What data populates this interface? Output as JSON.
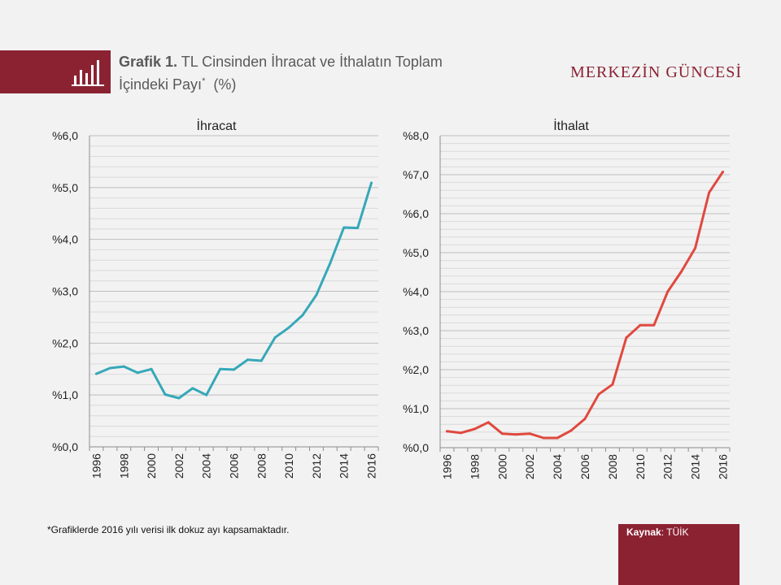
{
  "header": {
    "title_bold": "Grafik 1.",
    "title_line1": "TL Cinsinden İhracat ve İthalatın Toplam",
    "title_line2": "İçindeki Payı",
    "title_sup": "*",
    "title_unit": "(%)",
    "brand": "MERKEZİN GÜNCESİ",
    "icon": "bar-chart-icon"
  },
  "footer": {
    "footnote": "*Grafiklerde 2016 yılı verisi ilk dokuz ayı kapsamaktadır.",
    "source_label": "Kaynak",
    "source_value": ": TÜİK"
  },
  "colors": {
    "accent": "#8b2232",
    "export_line": "#36a8b9",
    "import_line": "#e0493f"
  },
  "chart_data": [
    {
      "type": "line",
      "title": "İhracat",
      "x": [
        1996,
        1997,
        1998,
        1999,
        2000,
        2001,
        2002,
        2003,
        2004,
        2005,
        2006,
        2007,
        2008,
        2009,
        2010,
        2011,
        2012,
        2013,
        2014,
        2015,
        2016
      ],
      "values": [
        1.41,
        1.52,
        1.55,
        1.43,
        1.5,
        1.01,
        0.94,
        1.13,
        1.0,
        1.5,
        1.49,
        1.68,
        1.66,
        2.11,
        2.3,
        2.54,
        2.93,
        3.54,
        4.23,
        4.22,
        5.09
      ],
      "ylim": [
        0,
        6
      ],
      "y_ticks": [
        0,
        1,
        2,
        3,
        4,
        5,
        6
      ],
      "y_tick_labels": [
        "%0,0",
        "%1,0",
        "%2,0",
        "%3,0",
        "%4,0",
        "%5,0",
        "%6,0"
      ],
      "x_tick_labels": [
        "1996",
        "1998",
        "2000",
        "2002",
        "2004",
        "2006",
        "2008",
        "2010",
        "2012",
        "2014",
        "2016"
      ],
      "grid": true
    },
    {
      "type": "line",
      "title": "İthalat",
      "x": [
        1996,
        1997,
        1998,
        1999,
        2000,
        2001,
        2002,
        2003,
        2004,
        2005,
        2006,
        2007,
        2008,
        2009,
        2010,
        2011,
        2012,
        2013,
        2014,
        2015,
        2016
      ],
      "values": [
        0.42,
        0.38,
        0.48,
        0.65,
        0.36,
        0.34,
        0.36,
        0.25,
        0.25,
        0.44,
        0.74,
        1.37,
        1.62,
        2.82,
        3.14,
        3.14,
        4.0,
        4.52,
        5.12,
        6.54,
        7.07
      ],
      "ylim": [
        0,
        8
      ],
      "y_ticks": [
        0,
        1,
        2,
        3,
        4,
        5,
        6,
        7,
        8
      ],
      "y_tick_labels": [
        "%0,0",
        "%1,0",
        "%2,0",
        "%3,0",
        "%4,0",
        "%5,0",
        "%6,0",
        "%7,0",
        "%8,0"
      ],
      "x_tick_labels": [
        "1996",
        "1998",
        "2000",
        "2002",
        "2004",
        "2006",
        "2008",
        "2010",
        "2012",
        "2014",
        "2016"
      ],
      "grid": true
    }
  ]
}
